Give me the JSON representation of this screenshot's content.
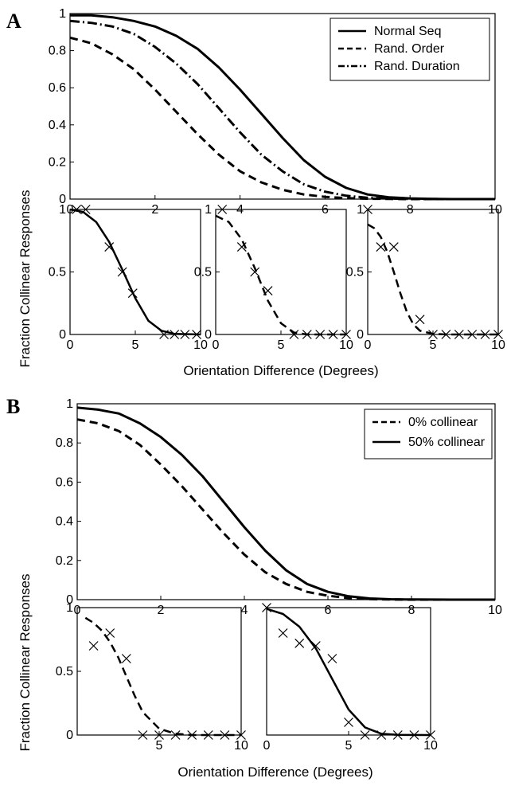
{
  "panels": [
    {
      "letter": "A",
      "ylabel": "Fraction Collinear Responses",
      "xlabel": "Orientation Difference (Degrees)"
    },
    {
      "letter": "B",
      "ylabel": "Fraction Collinear Responses",
      "xlabel": "Orientation Difference (Degrees)"
    }
  ],
  "chart_data": [
    {
      "id": "A-main",
      "type": "line",
      "panel": "A",
      "xlim": [
        0,
        10
      ],
      "ylim": [
        0,
        1
      ],
      "xticks": [
        "0",
        "2",
        "4",
        "6",
        "8",
        "10"
      ],
      "yticks": [
        "0",
        "0.2",
        "0.4",
        "0.6",
        "0.8",
        "1"
      ],
      "grid": false,
      "legend_position": "top-right",
      "series": [
        {
          "name": "Normal Seq",
          "style": "solid",
          "x": [
            0,
            0.5,
            1,
            1.5,
            2,
            2.5,
            3,
            3.5,
            4,
            4.5,
            5,
            5.5,
            6,
            6.5,
            7,
            7.5,
            8,
            8.5,
            9,
            10
          ],
          "y": [
            0.99,
            0.99,
            0.98,
            0.96,
            0.93,
            0.88,
            0.81,
            0.71,
            0.59,
            0.46,
            0.33,
            0.21,
            0.12,
            0.06,
            0.025,
            0.01,
            0.004,
            0.001,
            0,
            0
          ]
        },
        {
          "name": "Rand. Order",
          "style": "dashed",
          "x": [
            0,
            0.5,
            1,
            1.5,
            2,
            2.5,
            3,
            3.5,
            4,
            4.5,
            5,
            5.5,
            6,
            6.5,
            7,
            7.5,
            8,
            9,
            10
          ],
          "y": [
            0.87,
            0.84,
            0.78,
            0.7,
            0.59,
            0.47,
            0.35,
            0.24,
            0.15,
            0.09,
            0.05,
            0.025,
            0.012,
            0.005,
            0.002,
            0.001,
            0,
            0,
            0
          ]
        },
        {
          "name": "Rand. Duration",
          "style": "dashdot",
          "x": [
            0,
            0.5,
            1,
            1.5,
            2,
            2.5,
            3,
            3.5,
            4,
            4.5,
            5,
            5.5,
            6,
            6.5,
            7,
            7.5,
            8,
            9,
            10
          ],
          "y": [
            0.96,
            0.95,
            0.93,
            0.89,
            0.82,
            0.73,
            0.62,
            0.49,
            0.36,
            0.24,
            0.15,
            0.08,
            0.04,
            0.018,
            0.007,
            0.003,
            0.001,
            0,
            0
          ]
        }
      ]
    },
    {
      "id": "A-small-1",
      "type": "line",
      "panel": "A",
      "xlim": [
        0,
        10
      ],
      "ylim": [
        0,
        1
      ],
      "xticks": [
        "0",
        "5",
        "10"
      ],
      "yticks": [
        "0",
        "0.5",
        "1"
      ],
      "series": [
        {
          "name": "",
          "style": "solid",
          "x": [
            0,
            1,
            2,
            3,
            4,
            5,
            6,
            7,
            8,
            10
          ],
          "y": [
            1,
            0.98,
            0.9,
            0.74,
            0.52,
            0.29,
            0.11,
            0.03,
            0.005,
            0
          ]
        },
        {
          "name": "",
          "style": "markers",
          "x": [
            0.5,
            1.2,
            3.0,
            4.0,
            4.8,
            7.2,
            8.0,
            8.8,
            9.7
          ],
          "y": [
            1.0,
            1.0,
            0.7,
            0.5,
            0.33,
            0,
            0,
            0,
            0
          ]
        }
      ]
    },
    {
      "id": "A-small-2",
      "type": "line",
      "panel": "A",
      "xlim": [
        0,
        10
      ],
      "ylim": [
        0,
        1
      ],
      "xticks": [
        "0",
        "5",
        "10"
      ],
      "yticks": [
        "0",
        "0.5",
        "1"
      ],
      "series": [
        {
          "name": "",
          "style": "dashed",
          "x": [
            0,
            1,
            2,
            3,
            4,
            5,
            6,
            7,
            10
          ],
          "y": [
            0.95,
            0.9,
            0.76,
            0.53,
            0.27,
            0.09,
            0.015,
            0,
            0
          ]
        },
        {
          "name": "",
          "style": "markers",
          "x": [
            0.5,
            2.0,
            3.0,
            4.0,
            6.0,
            7.0,
            8.0,
            9.0,
            10.0
          ],
          "y": [
            1.0,
            0.7,
            0.5,
            0.35,
            0,
            0,
            0,
            0,
            0
          ]
        }
      ]
    },
    {
      "id": "A-small-3",
      "type": "line",
      "panel": "A",
      "xlim": [
        0,
        10
      ],
      "ylim": [
        0,
        1
      ],
      "xticks": [
        "0",
        "5",
        "10"
      ],
      "yticks": [
        "0",
        "0.5",
        "1"
      ],
      "series": [
        {
          "name": "",
          "style": "dashed",
          "x": [
            0,
            0.5,
            1,
            1.5,
            2,
            2.5,
            3,
            3.5,
            4,
            5,
            6,
            10
          ],
          "y": [
            0.88,
            0.85,
            0.78,
            0.66,
            0.5,
            0.33,
            0.18,
            0.08,
            0.03,
            0.005,
            0,
            0
          ]
        },
        {
          "name": "",
          "style": "markers",
          "x": [
            0,
            1.0,
            2.0,
            4.0,
            5.0,
            6.0,
            7.0,
            8.0,
            9.0,
            10.0
          ],
          "y": [
            1.0,
            0.7,
            0.7,
            0.12,
            0,
            0,
            0,
            0,
            0,
            0
          ]
        }
      ]
    },
    {
      "id": "B-main",
      "type": "line",
      "panel": "B",
      "xlim": [
        0,
        10
      ],
      "ylim": [
        0,
        1
      ],
      "xticks": [
        "0",
        "2",
        "4",
        "6",
        "8",
        "10"
      ],
      "yticks": [
        "0",
        "0.2",
        "0.4",
        "0.6",
        "0.8",
        "1"
      ],
      "grid": false,
      "legend_position": "top-right",
      "series": [
        {
          "name": "0% collinear",
          "style": "dashed",
          "x": [
            0,
            0.5,
            1,
            1.5,
            2,
            2.5,
            3,
            3.5,
            4,
            4.5,
            5,
            5.5,
            6,
            6.5,
            7,
            7.5,
            8,
            9,
            10
          ],
          "y": [
            0.92,
            0.9,
            0.86,
            0.79,
            0.69,
            0.58,
            0.46,
            0.34,
            0.23,
            0.14,
            0.08,
            0.04,
            0.02,
            0.008,
            0.003,
            0.001,
            0,
            0,
            0
          ]
        },
        {
          "name": "50% collinear",
          "style": "solid",
          "x": [
            0,
            0.5,
            1,
            1.5,
            2,
            2.5,
            3,
            3.5,
            4,
            4.5,
            5,
            5.5,
            6,
            6.5,
            7,
            7.5,
            8,
            9,
            10
          ],
          "y": [
            0.98,
            0.97,
            0.95,
            0.9,
            0.83,
            0.74,
            0.63,
            0.5,
            0.37,
            0.25,
            0.15,
            0.08,
            0.04,
            0.017,
            0.006,
            0.002,
            0.001,
            0,
            0
          ]
        }
      ]
    },
    {
      "id": "B-small-1",
      "type": "line",
      "panel": "B",
      "xlim": [
        0,
        10
      ],
      "ylim": [
        0,
        1
      ],
      "xticks": [
        "5",
        "10"
      ],
      "yticks": [
        "0",
        "0.5",
        "1"
      ],
      "series": [
        {
          "name": "",
          "style": "dashed",
          "x": [
            0,
            0.5,
            1,
            1.5,
            2,
            2.5,
            3,
            3.5,
            4,
            5,
            6,
            7,
            10
          ],
          "y": [
            0.93,
            0.92,
            0.88,
            0.82,
            0.73,
            0.61,
            0.46,
            0.31,
            0.18,
            0.05,
            0.01,
            0,
            0
          ]
        },
        {
          "name": "",
          "style": "markers",
          "x": [
            1.0,
            2.0,
            3.0,
            4.0,
            5.0,
            6.0,
            7.0,
            8.0,
            9.0,
            10.0
          ],
          "y": [
            0.7,
            0.8,
            0.6,
            0,
            0,
            0,
            0,
            0,
            0,
            0
          ]
        }
      ]
    },
    {
      "id": "B-small-2",
      "type": "line",
      "panel": "B",
      "xlim": [
        0,
        10
      ],
      "ylim": [
        0,
        1
      ],
      "xticks": [
        "0",
        "5",
        "10"
      ],
      "yticks": [],
      "series": [
        {
          "name": "",
          "style": "solid",
          "x": [
            0,
            1,
            2,
            3,
            4,
            5,
            6,
            7,
            8,
            10
          ],
          "y": [
            0.99,
            0.95,
            0.85,
            0.68,
            0.44,
            0.2,
            0.06,
            0.01,
            0.001,
            0
          ]
        },
        {
          "name": "",
          "style": "markers",
          "x": [
            0,
            1.0,
            2.0,
            3.0,
            4.0,
            5.0,
            6.0,
            7.0,
            8.0,
            9.0,
            10.0
          ],
          "y": [
            1.0,
            0.8,
            0.72,
            0.7,
            0.6,
            0.1,
            0,
            0,
            0,
            0,
            0
          ]
        }
      ]
    }
  ]
}
